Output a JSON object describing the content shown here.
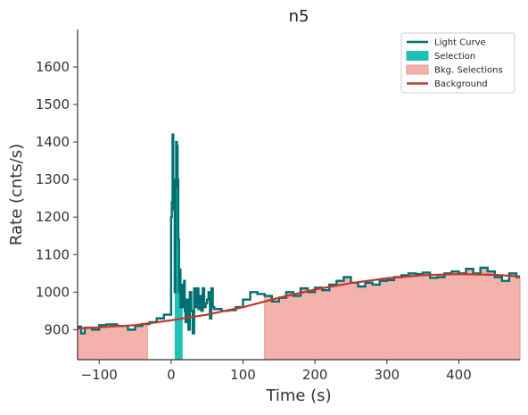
{
  "chart_data": {
    "type": "line",
    "title": "n5",
    "xlabel": "Time (s)",
    "ylabel": "Rate (cnts/s)",
    "xlim": [
      -130,
      485
    ],
    "ylim": [
      820,
      1700
    ],
    "x_ticks": [
      -100,
      0,
      100,
      200,
      300,
      400
    ],
    "y_ticks": [
      900,
      1000,
      1100,
      1200,
      1300,
      1400,
      1500,
      1600
    ],
    "grid": false,
    "legend_position": "top-right",
    "legend": [
      {
        "label": "Light Curve",
        "kind": "line",
        "color": "#007070"
      },
      {
        "label": "Selection",
        "kind": "patch",
        "color": "#20c0b4"
      },
      {
        "label": "Bkg. Selections",
        "kind": "patch",
        "color": "#f4b2ac"
      },
      {
        "label": "Background",
        "kind": "line",
        "color": "#c0392b"
      }
    ],
    "selection": {
      "range": [
        5,
        16
      ]
    },
    "bkg_selections": [
      {
        "range": [
          -130,
          -33
        ]
      },
      {
        "range": [
          130,
          485
        ]
      }
    ],
    "background": {
      "x": [
        -130,
        -50,
        0,
        50,
        100,
        150,
        200,
        250,
        300,
        350,
        400,
        450,
        485
      ],
      "y": [
        903,
        912,
        925,
        940,
        960,
        985,
        1007,
        1024,
        1037,
        1045,
        1048,
        1046,
        1042
      ]
    },
    "series": [
      {
        "name": "Light Curve",
        "x": [
          -130,
          -125,
          -120,
          -110,
          -100,
          -90,
          -75,
          -60,
          -50,
          -40,
          -30,
          -20,
          -10,
          0,
          1,
          2,
          3,
          4,
          5,
          6,
          7,
          8,
          9,
          10,
          11,
          12,
          13,
          14,
          15,
          16,
          17,
          18,
          19,
          20,
          22,
          24,
          26,
          28,
          30,
          32,
          34,
          36,
          38,
          40,
          42,
          44,
          46,
          48,
          50,
          52,
          54,
          56,
          58,
          60,
          70,
          80,
          90,
          100,
          110,
          120,
          130,
          140,
          150,
          160,
          170,
          180,
          190,
          200,
          210,
          220,
          230,
          240,
          250,
          260,
          270,
          280,
          290,
          300,
          310,
          320,
          330,
          340,
          350,
          360,
          370,
          380,
          390,
          400,
          410,
          420,
          430,
          440,
          450,
          460,
          470,
          480
        ],
        "y": [
          908,
          890,
          905,
          900,
          912,
          914,
          910,
          900,
          910,
          915,
          920,
          930,
          940,
          1200,
          1240,
          1420,
          1300,
          1220,
          1000,
          1280,
          1400,
          1390,
          1300,
          1140,
          1000,
          1060,
          960,
          1010,
          1020,
          1000,
          960,
          1030,
          950,
          920,
          980,
          900,
          1000,
          950,
          890,
          1010,
          960,
          1010,
          955,
          990,
          950,
          1010,
          960,
          970,
          980,
          1000,
          930,
          1010,
          960,
          955,
          950,
          952,
          960,
          980,
          1000,
          995,
          990,
          975,
          985,
          1000,
          990,
          1010,
          1000,
          1012,
          1005,
          1020,
          1030,
          1040,
          1025,
          1015,
          1025,
          1020,
          1030,
          1032,
          1040,
          1045,
          1050,
          1048,
          1052,
          1038,
          1040,
          1050,
          1055,
          1050,
          1062,
          1050,
          1065,
          1055,
          1040,
          1030,
          1050,
          1040
        ]
      }
    ]
  }
}
